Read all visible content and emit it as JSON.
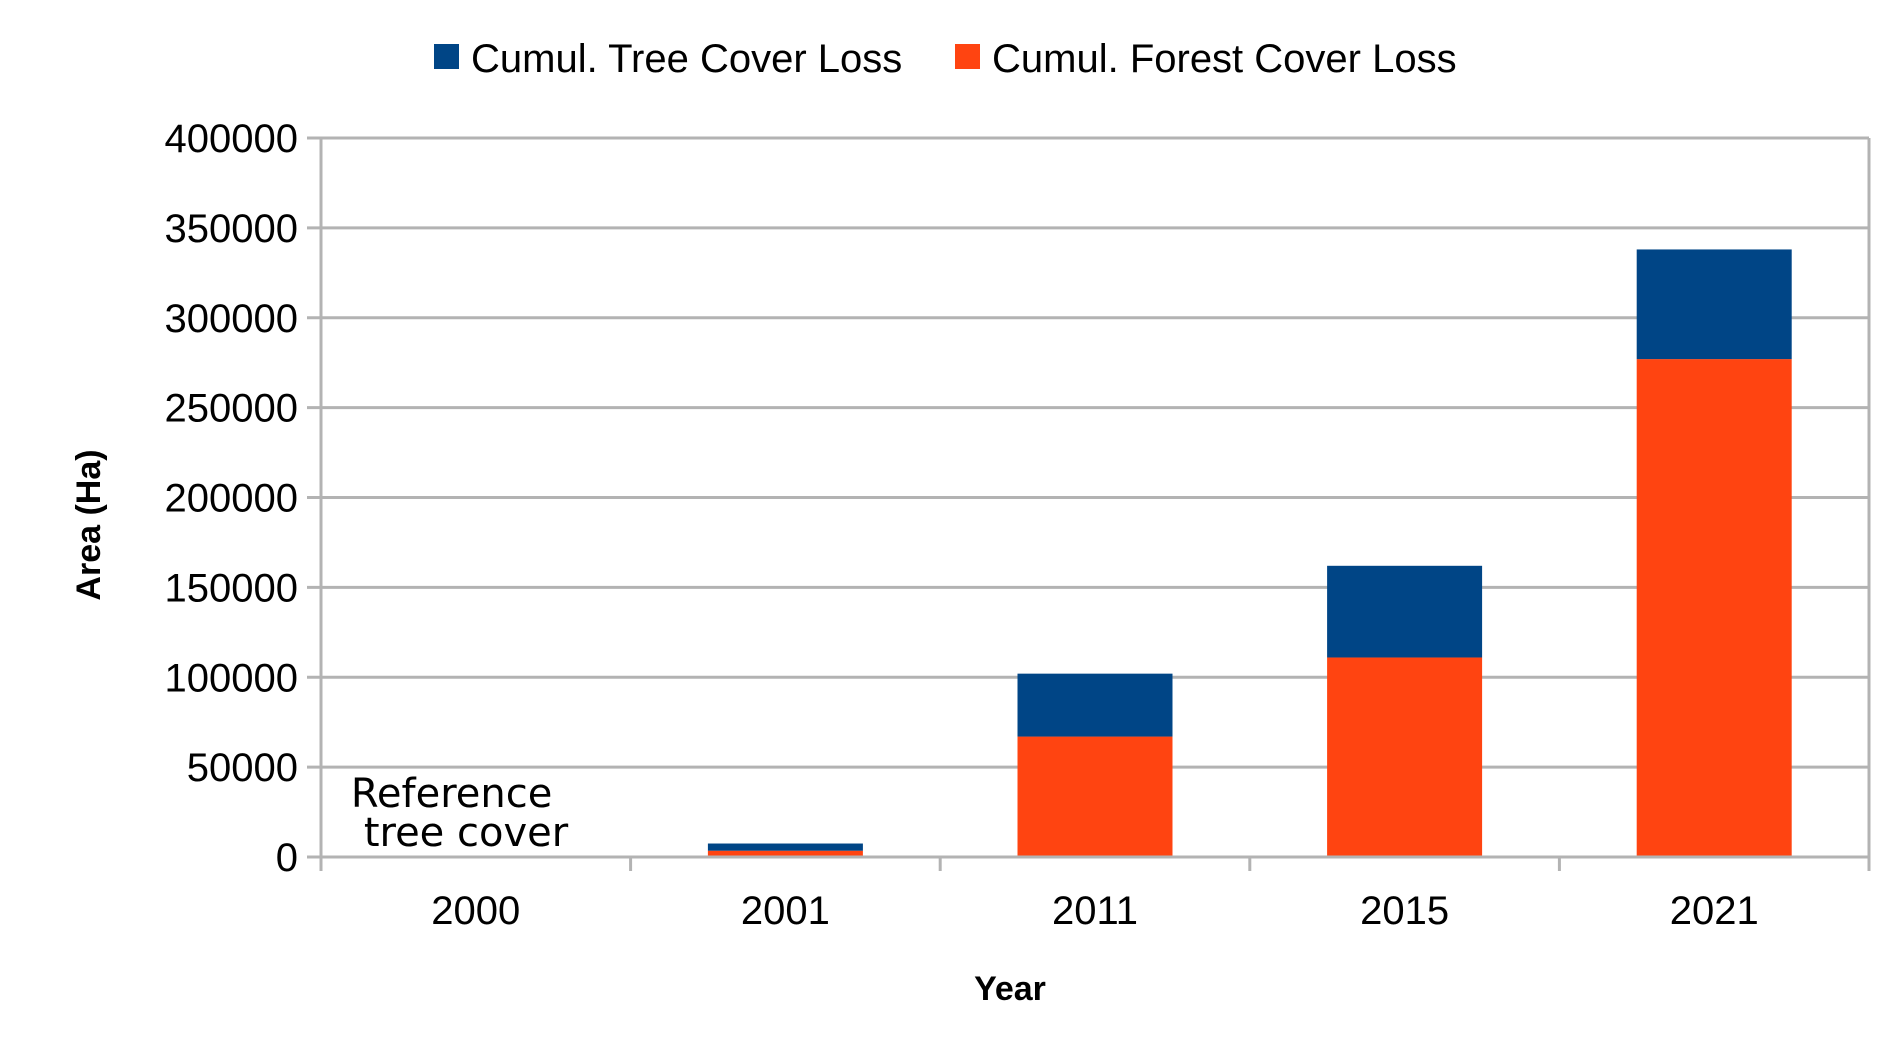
{
  "chart_data": {
    "type": "bar",
    "stacked": true,
    "categories": [
      "2000",
      "2001",
      "2011",
      "2015",
      "2021"
    ],
    "series": [
      {
        "name": "Cumul. Forest Cover Loss",
        "color": "#ff4411",
        "values": [
          0,
          3500,
          67000,
          111000,
          277000
        ]
      },
      {
        "name": "Cumul. Tree Cover Loss",
        "color": "#004586",
        "values": [
          0,
          4000,
          35000,
          51000,
          61000
        ]
      }
    ],
    "legend_order": [
      1,
      0
    ],
    "legend_position": "top",
    "xlabel": "Year",
    "ylabel": "Area (Ha)",
    "ylim": [
      0,
      400000
    ],
    "yticks": [
      "0",
      "50000",
      "100000",
      "150000",
      "200000",
      "250000",
      "300000",
      "350000",
      "400000"
    ],
    "grid": true,
    "annotation": {
      "lines": [
        "Reference",
        "tree cover"
      ],
      "category": "2000"
    }
  }
}
